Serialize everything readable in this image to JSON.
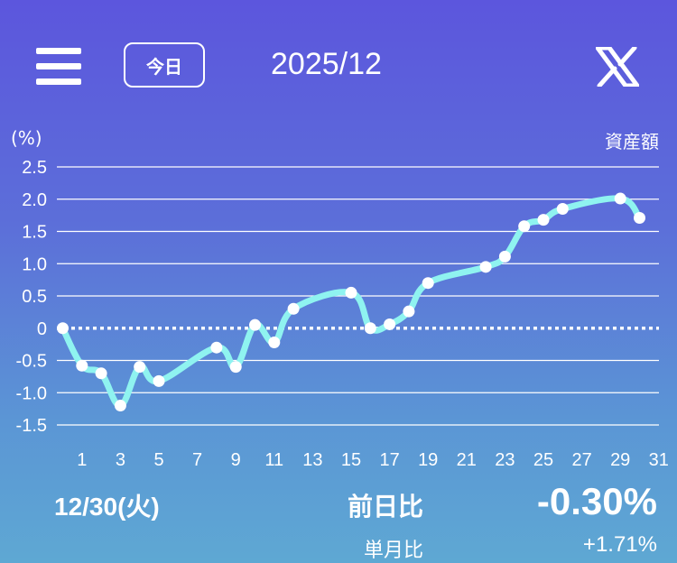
{
  "header": {
    "menu_icon": "hamburger-icon",
    "today_label": "今日",
    "month": "2025/12",
    "share_icon": "x-logo-icon"
  },
  "chart_data": {
    "type": "line",
    "unit_label": "(%)",
    "series_label": "資産額",
    "ylim": [
      -1.5,
      2.5
    ],
    "yticks": [
      2.5,
      2.0,
      1.5,
      1.0,
      0.5,
      0,
      -0.5,
      -1.0,
      -1.5
    ],
    "ytick_labels": [
      "2.5",
      "2.0",
      "1.5",
      "1.0",
      "0.5",
      "0",
      "-0.5",
      "-1.0",
      "-1.5"
    ],
    "xlim": [
      0,
      31
    ],
    "xticks": [
      "1",
      "3",
      "5",
      "7",
      "9",
      "11",
      "13",
      "15",
      "17",
      "19",
      "21",
      "23",
      "25",
      "27",
      "29",
      "31"
    ],
    "grid": true,
    "baseline": 0,
    "line_color": "#8ff3f0",
    "points": [
      {
        "x": 0,
        "y": 0
      },
      {
        "x": 1,
        "y": -0.58
      },
      {
        "x": 2,
        "y": -0.7
      },
      {
        "x": 3,
        "y": -1.2
      },
      {
        "x": 4,
        "y": -0.6
      },
      {
        "x": 5,
        "y": -0.82
      },
      {
        "x": 8,
        "y": -0.3
      },
      {
        "x": 9,
        "y": -0.6
      },
      {
        "x": 10,
        "y": 0.05
      },
      {
        "x": 11,
        "y": -0.22
      },
      {
        "x": 12,
        "y": 0.3
      },
      {
        "x": 15,
        "y": 0.55
      },
      {
        "x": 16,
        "y": 0.0
      },
      {
        "x": 17,
        "y": 0.06
      },
      {
        "x": 18,
        "y": 0.26
      },
      {
        "x": 19,
        "y": 0.7
      },
      {
        "x": 22,
        "y": 0.95
      },
      {
        "x": 23,
        "y": 1.11
      },
      {
        "x": 24,
        "y": 1.58
      },
      {
        "x": 25,
        "y": 1.68
      },
      {
        "x": 26,
        "y": 1.85
      },
      {
        "x": 29,
        "y": 2.01
      },
      {
        "x": 30,
        "y": 1.71
      }
    ]
  },
  "footer": {
    "date": "12/30(火)",
    "day_change_label": "前日比",
    "day_change_value": "-0.30%",
    "month_change_label": "単月比",
    "month_change_value": "+1.71%"
  }
}
